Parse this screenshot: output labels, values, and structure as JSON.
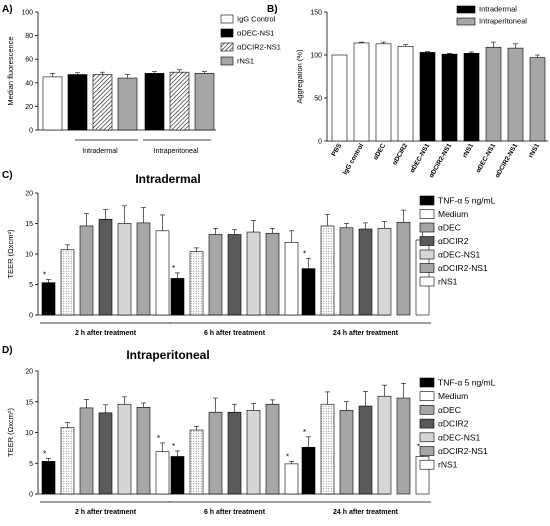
{
  "panels": {
    "a": "A)",
    "b": "B)",
    "c": "C)",
    "d": "D)"
  },
  "styles": {
    "black": "#000000",
    "white": "#ffffff",
    "gray": "#a6a6a6",
    "dark": "#5a5a5a",
    "light": "#d6d6d6"
  },
  "chart_data": [
    {
      "id": "A",
      "type": "bar",
      "ylabel": "Median fluorescence",
      "ylim": [
        0,
        100
      ],
      "yticks": [
        0,
        20,
        40,
        60,
        80,
        100
      ],
      "grid": false,
      "legend_position": "right",
      "legend": [
        {
          "name": "IgG Control",
          "fill": "white"
        },
        {
          "name": "αDEC-NS1",
          "fill": "black"
        },
        {
          "name": "αDCIR2-NS1",
          "fill": "hatch"
        },
        {
          "name": "rNS1",
          "fill": "gray"
        }
      ],
      "groups": [
        {
          "label": "Intradermal",
          "values": [
            45,
            47,
            47,
            44
          ],
          "errors": [
            3,
            1.5,
            2,
            3
          ]
        },
        {
          "label": "Intraperitoneal",
          "values": [
            48,
            49,
            48
          ],
          "errors": [
            1.5,
            2,
            1.5
          ],
          "fills": [
            "black",
            "hatch",
            "gray"
          ]
        }
      ]
    },
    {
      "id": "B",
      "type": "bar",
      "ylabel": "Aggregation (%)",
      "ylim": [
        0,
        150
      ],
      "yticks": [
        0,
        50,
        100,
        150
      ],
      "grid": false,
      "legend_position": "top-right",
      "legend": [
        {
          "name": "Intradermal",
          "fill": "black"
        },
        {
          "name": "Intraperitoneal",
          "fill": "gray"
        }
      ],
      "categories": [
        "PBS",
        "IgG control",
        "αDEC",
        "αDCIR2",
        "αDEC-NS1",
        "αDCIR2-NS1",
        "rNS1",
        "αDEC-NS1",
        "αDCIR2-NS1",
        "rNS1"
      ],
      "values": [
        100,
        114,
        113,
        110,
        103,
        101,
        102,
        109,
        108,
        97
      ],
      "errors": [
        0,
        1,
        2,
        2,
        0.8,
        1,
        1.5,
        6,
        5,
        3
      ],
      "fills": [
        "white",
        "white",
        "white",
        "white",
        "black",
        "black",
        "black",
        "gray",
        "gray",
        "gray"
      ]
    },
    {
      "id": "C",
      "type": "bar",
      "title": "Intradermal",
      "ylabel": "TEER (Ωxcm²)",
      "ylim": [
        0,
        20
      ],
      "yticks": [
        0,
        5,
        10,
        15,
        20
      ],
      "grid": false,
      "legend_position": "right",
      "legend": [
        {
          "name": "TNF-α 5 ng/mL",
          "fill": "black"
        },
        {
          "name": "Medium",
          "fill": "white"
        },
        {
          "name": "αDEC",
          "fill": "gray"
        },
        {
          "name": "αDCIR2",
          "fill": "dark"
        },
        {
          "name": "αDEC-NS1",
          "fill": "light"
        },
        {
          "name": "αDCIR2-NS1",
          "fill": "gray"
        },
        {
          "name": "rNS1",
          "fill": "white"
        }
      ],
      "categories": [
        "2 h after treatment",
        "6 h after treatment",
        "24 h after treatment"
      ],
      "series_fills": [
        "black",
        "dots",
        "gray",
        "dark",
        "light",
        "gray",
        "white"
      ],
      "values": [
        [
          5.3,
          10.7,
          14.6,
          15.7,
          15.0,
          15.1,
          13.8
        ],
        [
          6.0,
          10.4,
          13.2,
          13.2,
          13.6,
          13.4,
          11.9
        ],
        [
          7.6,
          14.6,
          14.3,
          14.1,
          14.2,
          15.2,
          12.3
        ]
      ],
      "errors": [
        [
          0.5,
          0.8,
          2.0,
          1.6,
          2.9,
          2.5,
          2.6
        ],
        [
          0.9,
          0.6,
          1.0,
          0.8,
          1.9,
          0.8,
          1.9
        ],
        [
          1.7,
          1.9,
          0.7,
          1.0,
          1.1,
          2.0,
          1.5
        ]
      ],
      "annotations": [
        {
          "group": 0,
          "bar": 0,
          "text": "*"
        },
        {
          "group": 1,
          "bar": 0,
          "text": "*"
        },
        {
          "group": 2,
          "bar": 0,
          "text": "*"
        }
      ]
    },
    {
      "id": "D",
      "type": "bar",
      "title": "Intraperitoneal",
      "ylabel": "TEER (Ωxcm²)",
      "ylim": [
        0,
        20
      ],
      "yticks": [
        0,
        5,
        10,
        15,
        20
      ],
      "grid": false,
      "legend_position": "right",
      "legend": [
        {
          "name": "TNF-α 5 ng/mL",
          "fill": "black"
        },
        {
          "name": "Medium",
          "fill": "white"
        },
        {
          "name": "αDEC",
          "fill": "gray"
        },
        {
          "name": "αDCIR2",
          "fill": "dark"
        },
        {
          "name": "αDEC-NS1",
          "fill": "light"
        },
        {
          "name": "αDCIR2-NS1",
          "fill": "gray"
        },
        {
          "name": "rNS1",
          "fill": "white"
        }
      ],
      "categories": [
        "2 h after treatment",
        "6 h after treatment",
        "24 h after treatment"
      ],
      "series_fills": [
        "black",
        "dots",
        "gray",
        "dark",
        "light",
        "gray",
        "white"
      ],
      "values": [
        [
          5.3,
          10.8,
          14.0,
          13.2,
          14.6,
          14.1,
          6.9
        ],
        [
          6.1,
          10.4,
          13.3,
          13.3,
          13.6,
          14.6,
          4.9
        ],
        [
          7.6,
          14.6,
          13.6,
          14.3,
          15.9,
          15.6,
          6.1
        ]
      ],
      "errors": [
        [
          0.5,
          0.8,
          1.4,
          1.3,
          1.2,
          0.7,
          1.4
        ],
        [
          0.9,
          0.6,
          2.3,
          1.3,
          1.1,
          0.7,
          0.4
        ],
        [
          1.7,
          2.0,
          1.4,
          2.4,
          1.8,
          2.4,
          0.8
        ]
      ],
      "annotations": [
        {
          "group": 0,
          "bar": 0,
          "text": "*"
        },
        {
          "group": 0,
          "bar": 6,
          "text": "*"
        },
        {
          "group": 1,
          "bar": 0,
          "text": "*"
        },
        {
          "group": 1,
          "bar": 6,
          "text": "*"
        },
        {
          "group": 2,
          "bar": 0,
          "text": "*"
        },
        {
          "group": 2,
          "bar": 6,
          "text": "*"
        }
      ]
    }
  ]
}
